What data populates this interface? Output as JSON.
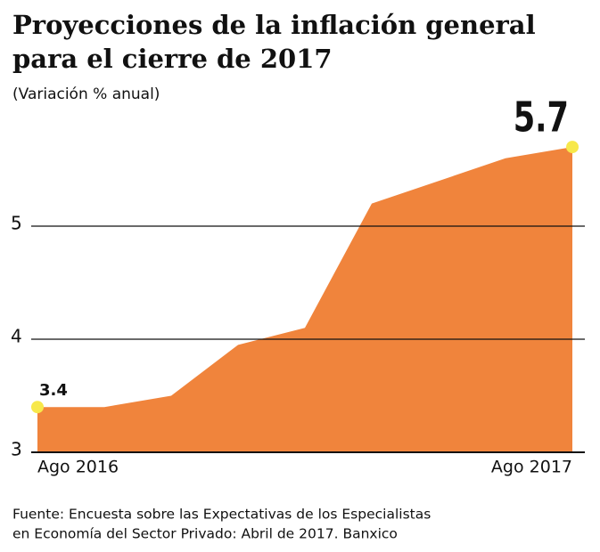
{
  "chart_data": {
    "type": "area",
    "title": [
      "Proyecciones de la inflación general",
      "para el cierre de 2017"
    ],
    "subtitle": "(Variación % anual)",
    "categories": [
      "Ago 2016",
      null,
      null,
      null,
      null,
      null,
      null,
      null,
      "Ago 2017"
    ],
    "values": [
      3.4,
      3.4,
      3.5,
      3.95,
      4.1,
      5.2,
      5.4,
      5.6,
      5.7
    ],
    "color": "#f0843c",
    "marker_color": "#f7e84b",
    "ylim": [
      3,
      6
    ],
    "yticks": [
      3,
      4,
      5
    ],
    "grid": true,
    "source": [
      "Fuente: Encuesta sobre las Expectativas de los Especialistas",
      "en Economía del Sector Privado: Abril de 2017. Banxico"
    ]
  }
}
